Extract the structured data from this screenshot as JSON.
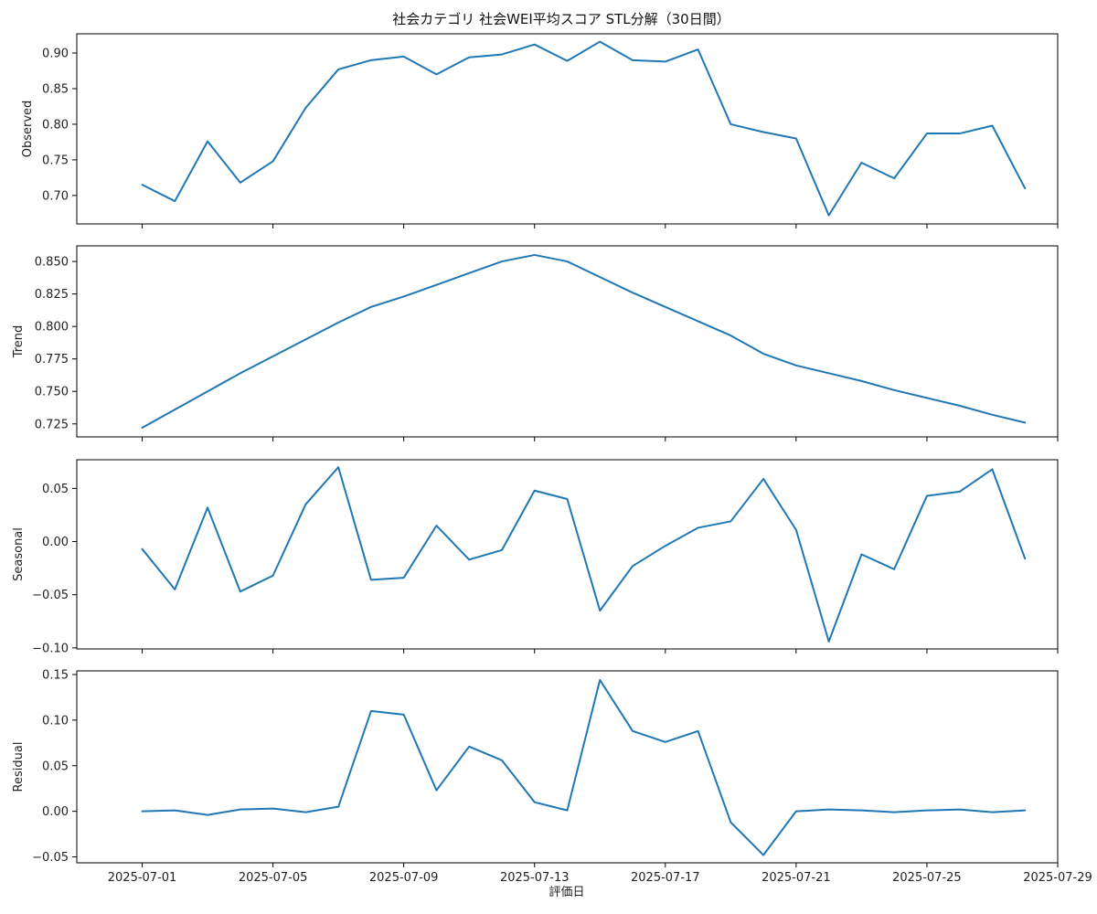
{
  "chart_data": {
    "type": "line",
    "title": "社会カテゴリ 社会WEI平均スコア STL分解（30日間）",
    "xlabel": "評価日",
    "x": [
      "2025-07-01",
      "2025-07-02",
      "2025-07-03",
      "2025-07-04",
      "2025-07-05",
      "2025-07-06",
      "2025-07-07",
      "2025-07-08",
      "2025-07-09",
      "2025-07-10",
      "2025-07-11",
      "2025-07-12",
      "2025-07-13",
      "2025-07-14",
      "2025-07-15",
      "2025-07-16",
      "2025-07-17",
      "2025-07-18",
      "2025-07-19",
      "2025-07-20",
      "2025-07-21",
      "2025-07-22",
      "2025-07-23",
      "2025-07-24",
      "2025-07-25",
      "2025-07-26",
      "2025-07-27",
      "2025-07-28"
    ],
    "xticks": [
      "2025-07-01",
      "2025-07-05",
      "2025-07-09",
      "2025-07-13",
      "2025-07-17",
      "2025-07-21",
      "2025-07-25",
      "2025-07-29"
    ],
    "xlim": [
      "2025-06-29",
      "2025-07-29"
    ],
    "line_color": "#1f77b4",
    "grid": false,
    "panels": [
      {
        "ylabel": "Observed",
        "ylim": [
          0.66,
          0.927
        ],
        "yticks": [
          "0.70",
          "0.75",
          "0.80",
          "0.85",
          "0.90"
        ],
        "values": [
          0.715,
          0.692,
          0.776,
          0.718,
          0.748,
          0.823,
          0.877,
          0.89,
          0.895,
          0.87,
          0.894,
          0.898,
          0.912,
          0.889,
          0.916,
          0.89,
          0.888,
          0.905,
          0.8,
          0.789,
          0.78,
          0.672,
          0.746,
          0.724,
          0.787,
          0.787,
          0.798,
          0.71
        ]
      },
      {
        "ylabel": "Trend",
        "ylim": [
          0.715,
          0.862
        ],
        "yticks": [
          "0.725",
          "0.750",
          "0.775",
          "0.800",
          "0.825",
          "0.850"
        ],
        "values": [
          0.722,
          0.736,
          0.75,
          0.764,
          0.777,
          0.79,
          0.803,
          0.815,
          0.823,
          0.832,
          0.841,
          0.85,
          0.855,
          0.85,
          0.838,
          0.826,
          0.815,
          0.804,
          0.793,
          0.779,
          0.77,
          0.764,
          0.758,
          0.751,
          0.745,
          0.739,
          0.732,
          0.726
        ]
      },
      {
        "ylabel": "Seasonal",
        "ylim": [
          -0.101,
          0.077
        ],
        "yticks": [
          "−0.10",
          "−0.05",
          "0.00",
          "0.05"
        ],
        "values": [
          -0.007,
          -0.045,
          0.032,
          -0.047,
          -0.032,
          0.035,
          0.07,
          -0.036,
          -0.034,
          0.015,
          -0.017,
          -0.008,
          0.048,
          0.04,
          -0.065,
          -0.023,
          -0.004,
          0.013,
          0.019,
          0.059,
          0.011,
          -0.094,
          -0.012,
          -0.026,
          0.043,
          0.047,
          0.068,
          -0.016
        ]
      },
      {
        "ylabel": "Residual",
        "ylim": [
          -0.0565,
          0.154
        ],
        "yticks": [
          "−0.05",
          "0.00",
          "0.05",
          "0.10",
          "0.15"
        ],
        "values": [
          0.0,
          0.001,
          -0.004,
          0.002,
          0.003,
          -0.001,
          0.005,
          0.11,
          0.106,
          0.023,
          0.071,
          0.056,
          0.01,
          0.001,
          0.144,
          0.088,
          0.076,
          0.088,
          -0.012,
          -0.048,
          0.0,
          0.002,
          0.001,
          -0.001,
          0.001,
          0.002,
          -0.001,
          0.001
        ]
      }
    ]
  }
}
